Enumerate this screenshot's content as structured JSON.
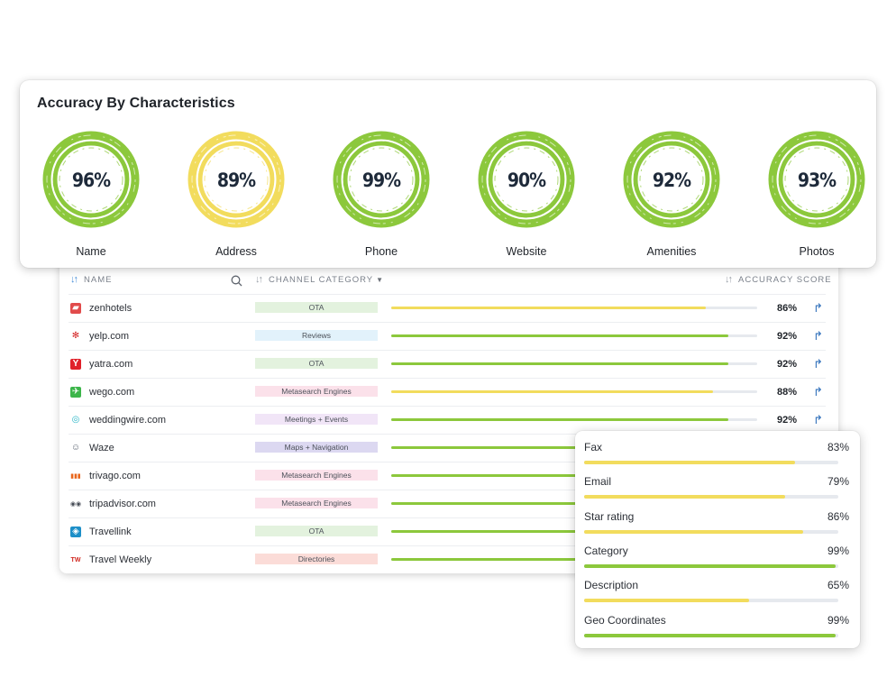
{
  "accuracy_card": {
    "title": "Accuracy By Characteristics",
    "items": [
      {
        "label": "Name",
        "value": "96%",
        "color": "#8cc83c"
      },
      {
        "label": "Address",
        "value": "89%",
        "color": "#f2dc5d"
      },
      {
        "label": "Phone",
        "value": "99%",
        "color": "#8cc83c"
      },
      {
        "label": "Website",
        "value": "90%",
        "color": "#8cc83c"
      },
      {
        "label": "Amenities",
        "value": "92%",
        "color": "#8cc83c"
      },
      {
        "label": "Photos",
        "value": "93%",
        "color": "#8cc83c"
      }
    ]
  },
  "table": {
    "headers": {
      "name": "NAME",
      "category": "CHANNEL CATEGORY",
      "score": "ACCURACY SCORE"
    },
    "rows": [
      {
        "logo": "zenhotels-logo",
        "name": "zenhotels",
        "category": "OTA",
        "cat_color": "#e3f2de",
        "score": "86%",
        "fill": 0.86,
        "bar_color": "#f2dc5d",
        "share": "↱"
      },
      {
        "logo": "yelp-logo",
        "name": "yelp.com",
        "category": "Reviews",
        "cat_color": "#e2f2fb",
        "score": "92%",
        "fill": 0.92,
        "bar_color": "#8cc83c",
        "share": "↱"
      },
      {
        "logo": "yatra-logo",
        "name": "yatra.com",
        "category": "OTA",
        "cat_color": "#e3f2de",
        "score": "92%",
        "fill": 0.92,
        "bar_color": "#8cc83c",
        "share": "↱"
      },
      {
        "logo": "wego-logo",
        "name": "wego.com",
        "category": "Metasearch Engines",
        "cat_color": "#fbe1ea",
        "score": "88%",
        "fill": 0.88,
        "bar_color": "#f2dc5d",
        "share": "↱"
      },
      {
        "logo": "weddingwire-logo",
        "name": "weddingwire.com",
        "category": "Meetings + Events",
        "cat_color": "#f1e5f7",
        "score": "92%",
        "fill": 0.92,
        "bar_color": "#8cc83c",
        "share": "↱"
      },
      {
        "logo": "waze-logo",
        "name": "Waze",
        "category": "Maps + Navigation",
        "cat_color": "#dcd8f1",
        "score": "",
        "fill": 0.92,
        "bar_color": "#8cc83c",
        "share": ""
      },
      {
        "logo": "trivago-logo",
        "name": "trivago.com",
        "category": "Metasearch Engines",
        "cat_color": "#fbe1ea",
        "score": "",
        "fill": 0.92,
        "bar_color": "#8cc83c",
        "share": ""
      },
      {
        "logo": "tripadvisor-logo",
        "name": "tripadvisor.com",
        "category": "Metasearch Engines",
        "cat_color": "#fbe1ea",
        "score": "",
        "fill": 0.92,
        "bar_color": "#8cc83c",
        "share": ""
      },
      {
        "logo": "travellink-logo",
        "name": "Travellink",
        "category": "OTA",
        "cat_color": "#e3f2de",
        "score": "",
        "fill": 0.92,
        "bar_color": "#8cc83c",
        "share": ""
      },
      {
        "logo": "travelweekly-logo",
        "name": "Travel Weekly",
        "category": "Directories",
        "cat_color": "#fbdcd8",
        "score": "",
        "fill": 0.92,
        "bar_color": "#8cc83c",
        "share": ""
      }
    ]
  },
  "attributes": [
    {
      "name": "Fax",
      "value": "83%",
      "fill": 0.83,
      "color": "#f2dc5d"
    },
    {
      "name": "Email",
      "value": "79%",
      "fill": 0.79,
      "color": "#f2dc5d"
    },
    {
      "name": "Star rating",
      "value": "86%",
      "fill": 0.86,
      "color": "#f2dc5d"
    },
    {
      "name": "Category",
      "value": "99%",
      "fill": 0.99,
      "color": "#8cc83c"
    },
    {
      "name": "Description",
      "value": "65%",
      "fill": 0.65,
      "color": "#f2dc5d"
    },
    {
      "name": "Geo Coordinates",
      "value": "99%",
      "fill": 0.99,
      "color": "#8cc83c"
    }
  ]
}
